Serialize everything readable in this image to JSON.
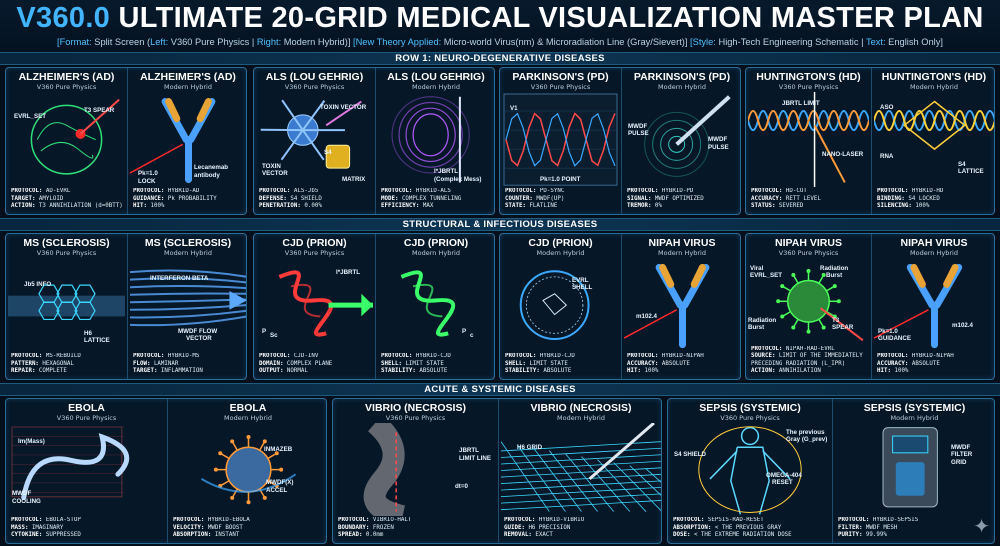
{
  "header": {
    "title_accent": "V360.0",
    "title_main": "ULTIMATE 20-GRID MEDICAL VISUALIZATION MASTER PLAN",
    "subtitle": [
      {
        "text": "[Format: ",
        "hl": true
      },
      {
        "text": "Split Screen (",
        "hl": false
      },
      {
        "text": "Left:",
        "hl": true
      },
      {
        "text": " V360 Pure Physics | ",
        "hl": false
      },
      {
        "text": "Right:",
        "hl": true
      },
      {
        "text": " Modern Hybrid)] ",
        "hl": false
      },
      {
        "text": "[New Theory Applied:",
        "hl": true
      },
      {
        "text": " Micro-world Virus(nm) & Microradiation Line (Gray/Sievert)] ",
        "hl": false
      },
      {
        "text": "[Style:",
        "hl": true
      },
      {
        "text": " High-Tech Engineering Schematic | ",
        "hl": false
      },
      {
        "text": "Text:",
        "hl": true
      },
      {
        "text": " English Only]",
        "hl": false
      }
    ]
  },
  "sections": [
    {
      "title": "ROW 1: NEURO-DEGENERATIVE DISEASES"
    },
    {
      "title": "STRUCTURAL & INFECTIOUS DISEASES"
    },
    {
      "title": "ACUTE & SYSTEMIC DISEASES"
    }
  ],
  "row1": [
    {
      "panels": [
        {
          "title": "ALZHEIMER'S (AD)",
          "sub": "V360 Pure Physics",
          "art": "brain",
          "color": "#2fe07a",
          "labels": [
            {
              "t": "EVRL_SET"
            },
            {
              "t": "T3 SPEAR"
            }
          ],
          "info": [
            [
              "PROTOCOL:",
              " AD-EVRL"
            ],
            [
              "TARGET:",
              " AMYLOID"
            ],
            [
              "ACTION:",
              " T3 ANNIHILATION (d=0BTT)"
            ]
          ]
        },
        {
          "title": "ALZHEIMER'S (AD)",
          "sub": "Modern Hybrid",
          "art": "antibody",
          "color": "#e8a437",
          "labels": [
            {
              "t": "Pk=1.0"
            },
            {
              "t": "LOCK"
            },
            {
              "t": "Lecanemab"
            },
            {
              "t": "antibody"
            }
          ],
          "info": [
            [
              "PROTOCOL:",
              " HYBRID-AD"
            ],
            [
              "GUIDANCE:",
              " Pk PROBABILITY"
            ],
            [
              "HIT:",
              " 100%"
            ]
          ]
        }
      ]
    },
    {
      "panels": [
        {
          "title": "ALS (LOU GEHRIG)",
          "sub": "V360 Pure Physics",
          "art": "neuron",
          "color": "#e07ae0",
          "labels": [
            {
              "t": "TOXIN VECTOR"
            },
            {
              "t": "TOXIN"
            },
            {
              "t": "VECTOR"
            },
            {
              "t": "S4"
            },
            {
              "t": "MATRIX"
            }
          ],
          "info": [
            [
              "PROTOCOL:",
              " ALS-Jb5"
            ],
            [
              "DEFENSE:",
              " S4 SHIELD"
            ],
            [
              "PENETRATION:",
              " 0.00%"
            ]
          ]
        },
        {
          "title": "ALS (LOU GEHRIG)",
          "sub": "Modern Hybrid",
          "art": "tunnel",
          "color": "#b05cff",
          "labels": [
            {
              "t": "I*JBRTL"
            },
            {
              "t": "(Complex Mess)"
            }
          ],
          "info": [
            [
              "PROTOCOL:",
              " HYBRID-ALS"
            ],
            [
              "MODE:",
              " COMPLEX TUNNELING"
            ],
            [
              "EFFICIENCY:",
              " MAX"
            ]
          ]
        }
      ]
    },
    {
      "panels": [
        {
          "title": "PARKINSON'S (PD)",
          "sub": "V360 Pure Physics",
          "art": "wave",
          "color": "#ff4a4a",
          "labels": [
            {
              "t": "V1"
            },
            {
              "t": "Pk=1.0 POINT"
            }
          ],
          "info": [
            [
              "PROTOCOL:",
              " PD-SYNC"
            ],
            [
              "COUNTER:",
              " MWDF(UP)"
            ],
            [
              "STATE:",
              " FLATLINE"
            ]
          ]
        },
        {
          "title": "PARKINSON'S (PD)",
          "sub": "Modern Hybrid",
          "art": "probe",
          "color": "#39e0d0",
          "labels": [
            {
              "t": "MWDF"
            },
            {
              "t": "PULSE"
            },
            {
              "t": "MWDF"
            },
            {
              "t": "PULSE"
            }
          ],
          "info": [
            [
              "PROTOCOL:",
              " HYBRID-PD"
            ],
            [
              "SIGNAL:",
              " MWDF OPTIMIZED"
            ],
            [
              "TREMOR:",
              " 0%"
            ]
          ]
        }
      ]
    },
    {
      "panels": [
        {
          "title": "HUNTINGTON'S (HD)",
          "sub": "V360 Pure Physics",
          "art": "dna-cut",
          "color": "#ff9a3a",
          "labels": [
            {
              "t": "JBRTL LIMIT"
            },
            {
              "t": "NANO-LASER"
            }
          ],
          "info": [
            [
              "PROTOCOL:",
              " HD-CUT"
            ],
            [
              "ACCURACY:",
              " RETT LEVEL"
            ],
            [
              "STATUS:",
              " SEVERED"
            ]
          ]
        },
        {
          "title": "HUNTINGTON'S (HD)",
          "sub": "Modern Hybrid",
          "art": "lattice-dna",
          "color": "#ffcf3a",
          "labels": [
            {
              "t": "ASO"
            },
            {
              "t": "RNA"
            },
            {
              "t": "S4"
            },
            {
              "t": "LATTICE"
            }
          ],
          "info": [
            [
              "PROTOCOL:",
              " HYBRID-HD"
            ],
            [
              "BINDING:",
              " S4 LOCKED"
            ],
            [
              "SILENCING:",
              " 100%"
            ]
          ]
        }
      ]
    }
  ],
  "row2": [
    {
      "panels": [
        {
          "title": "MS (SCLEROSIS)",
          "sub": "V360 Pure Physics",
          "art": "hexfiber",
          "color": "#3ad8ff",
          "labels": [
            {
              "t": "Jb5 INFO"
            },
            {
              "t": "H6"
            },
            {
              "t": "LATTICE"
            }
          ],
          "info": [
            [
              "PROTOCOL:",
              " MS-REBUILD"
            ],
            [
              "PATTERN:",
              " HEXAGONAL"
            ],
            [
              "REPAIR:",
              " COMPLETE"
            ]
          ]
        },
        {
          "title": "MS (SCLEROSIS)",
          "sub": "Modern Hybrid",
          "art": "flow",
          "color": "#5aa8ff",
          "labels": [
            {
              "t": "INTERFERON BETA"
            },
            {
              "t": "MWDF FLOW"
            },
            {
              "t": "VECTOR"
            }
          ],
          "info": [
            [
              "PROTOCOL:",
              " HYBRID-MS"
            ],
            [
              "FLOW:",
              " LAMINAR"
            ],
            [
              "TARGET:",
              " INFLAMMATION"
            ]
          ]
        }
      ]
    },
    {
      "panels": [
        {
          "title": "CJD (PRION)",
          "sub": "V360 Pure Physics",
          "art": "prion-red",
          "color": "#ff3a3a",
          "labels": [
            {
              "t": "P"
            },
            {
              "t": "Sc"
            },
            {
              "t": "I*JBRTL"
            }
          ],
          "info": [
            [
              "PROTOCOL:",
              " CJD-INV"
            ],
            [
              "DOMAIN:",
              " COMPLEX PLANE"
            ],
            [
              "OUTPUT:",
              " NORMAL"
            ]
          ]
        },
        {
          "title": "CJD (PRION)",
          "sub": "Modern Hybrid",
          "art": "prion-green",
          "color": "#3aff6a",
          "labels": [
            {
              "t": "P"
            },
            {
              "t": "c"
            }
          ],
          "info": [
            [
              "PROTOCOL:",
              " HYBRID-CJD"
            ],
            [
              "SHELL:",
              " LIMIT STATE"
            ],
            [
              "STABILITY:",
              " ABSOLUTE"
            ]
          ]
        }
      ]
    },
    {
      "panels": [
        {
          "title": "CJD (PRION)",
          "sub": "Modern Hybrid",
          "art": "shell",
          "color": "#3aa8ff",
          "labels": [
            {
              "t": "EVRL"
            },
            {
              "t": "SHELL"
            }
          ],
          "info": [
            [
              "PROTOCOL:",
              " HYBRID-CJD"
            ],
            [
              "SHELL:",
              " LIMIT STATE"
            ],
            [
              "STABILITY:",
              " ABSOLUTE"
            ]
          ]
        },
        {
          "title": "NIPAH VIRUS",
          "sub": "Modern Hybrid",
          "art": "antibody2",
          "color": "#e8a437",
          "labels": [
            {
              "t": "m102.4"
            }
          ],
          "info": [
            [
              "PROTOCOL:",
              " HYBRID-NIPAH"
            ],
            [
              "ACCURACY:",
              " ABSOLUTE"
            ],
            [
              "HIT:",
              " 100%"
            ]
          ]
        }
      ]
    },
    {
      "panels": [
        {
          "title": "NIPAH VIRUS",
          "sub": "V360 Pure Physics",
          "art": "virus-green",
          "color": "#4aff5a",
          "labels": [
            {
              "t": "Viral"
            },
            {
              "t": "EVRL_SET"
            },
            {
              "t": "Radiation"
            },
            {
              "t": "Burst"
            },
            {
              "t": "Radiation"
            },
            {
              "t": "Burst"
            },
            {
              "t": "T3"
            },
            {
              "t": "SPEAR"
            }
          ],
          "info": [
            [
              "PROTOCOL:",
              " NIPAH-RAD-EVRL"
            ],
            [
              "SOURCE:",
              " LIMIT OF THE IMMEDIATELY"
            ],
            [
              "",
              " PRECEDING RADIATION (L_IPR)"
            ],
            [
              "ACTION:",
              " ANNIHILATION"
            ]
          ]
        },
        {
          "title": "NIPAH VIRUS",
          "sub": "Modern Hybrid",
          "art": "antibody3",
          "color": "#e8a437",
          "labels": [
            {
              "t": "Pk=1.0"
            },
            {
              "t": "GUIDANCE"
            },
            {
              "t": "m102.4"
            }
          ],
          "info": [
            [
              "PROTOCOL:",
              " HYBRID-NIPAH"
            ],
            [
              "ACCURACY:",
              " ABSOLUTE"
            ],
            [
              "HIT:",
              " 100%"
            ]
          ]
        }
      ]
    }
  ],
  "row3": [
    {
      "panels": [
        {
          "title": "EBOLA",
          "sub": "V360 Pure Physics",
          "art": "filament",
          "color": "#5ab8ff",
          "labels": [
            {
              "t": "Im(Mass)"
            },
            {
              "t": "MWDF"
            },
            {
              "t": "COOLING"
            }
          ],
          "info": [
            [
              "PROTOCOL:",
              " EBOLA-STOP"
            ],
            [
              "MASS:",
              " IMAGINARY"
            ],
            [
              "CYTOKINE:",
              " SUPPRESSED"
            ]
          ]
        },
        {
          "title": "EBOLA",
          "sub": "Modern Hybrid",
          "art": "virus-blue",
          "color": "#ff9a3a",
          "labels": [
            {
              "t": "INMAZEB"
            },
            {
              "t": "MWDF(X)"
            },
            {
              "t": "ACCEL"
            }
          ],
          "info": [
            [
              "PROTOCOL:",
              " HYBRID-EBOLA"
            ],
            [
              "VELOCITY:",
              " MWDF BOOST"
            ],
            [
              "ABSORPTION:",
              " INSTANT"
            ]
          ]
        }
      ]
    },
    {
      "panels": [
        {
          "title": "VIBRIO (NECROSIS)",
          "sub": "V360 Pure Physics",
          "art": "tissue",
          "color": "#ff4a4a",
          "labels": [
            {
              "t": "JBRTL"
            },
            {
              "t": "LIMIT LINE"
            },
            {
              "t": "dt=0"
            }
          ],
          "info": [
            [
              "PROTOCOL:",
              " VIBRIO-HALT"
            ],
            [
              "BOUNDARY:",
              " FROZEN"
            ],
            [
              "SPREAD:",
              " 0.0mm"
            ]
          ]
        },
        {
          "title": "VIBRIO (NECROSIS)",
          "sub": "Modern Hybrid",
          "art": "grid",
          "color": "#3ad8ff",
          "labels": [
            {
              "t": "H6 GRID"
            }
          ],
          "info": [
            [
              "PROTOCOL:",
              " HYBRID-VIBRIO"
            ],
            [
              "GUIDE:",
              " H6 PRECISION"
            ],
            [
              "REMOVAL:",
              " EXACT"
            ]
          ]
        }
      ]
    },
    {
      "panels": [
        {
          "title": "SEPSIS (SYSTEMIC)",
          "sub": "V360 Pure Physics",
          "art": "body",
          "color": "#ffcf3a",
          "labels": [
            {
              "t": "The previous"
            },
            {
              "t": "Gray (G_prev)"
            },
            {
              "t": "S4 SHIELD"
            },
            {
              "t": "OMEGA-404"
            },
            {
              "t": "RESET"
            }
          ],
          "info": [
            [
              "PROTOCOL:",
              " SEPSIS-RAD-RESET"
            ],
            [
              "ABSORPTION:",
              " < THE PREVIOUS GRAY"
            ],
            [
              "DOSE:",
              " < THE EXTREME RADIATION DOSE"
            ]
          ]
        },
        {
          "title": "SEPSIS (SYSTEMIC)",
          "sub": "Modern Hybrid",
          "art": "machine",
          "color": "#3ad8ff",
          "labels": [
            {
              "t": "MWDF"
            },
            {
              "t": "FILTER"
            },
            {
              "t": "GRID"
            }
          ],
          "info": [
            [
              "PROTOCOL:",
              " HYBRID-SEPSIS"
            ],
            [
              "FILTER:",
              " MWDF MESH"
            ],
            [
              "PURITY:",
              " 99.99%"
            ]
          ]
        }
      ]
    }
  ],
  "icons": {
    "watermark": "sparkle-icon"
  }
}
